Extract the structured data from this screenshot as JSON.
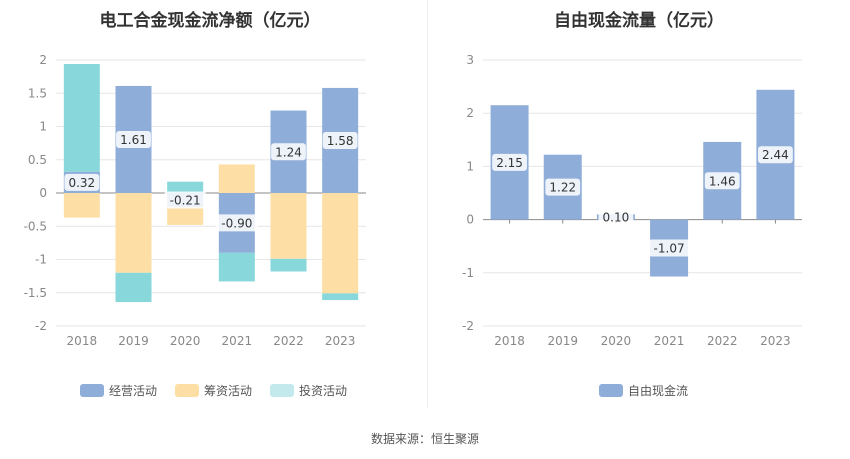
{
  "chart_data": [
    {
      "type": "bar",
      "stacked": true,
      "title": "电工合金现金流净额（亿元）",
      "categories": [
        "2018",
        "2019",
        "2020",
        "2021",
        "2022",
        "2023"
      ],
      "ylim": [
        -2,
        2
      ],
      "yticks": [
        2,
        1.5,
        1,
        0.5,
        0,
        -0.5,
        -1,
        -1.5,
        -2
      ],
      "ytick_labels": [
        "2",
        "1.5",
        "1",
        "0.5",
        "0",
        "-0.5",
        "-1",
        "-1.5",
        "-2"
      ],
      "series": [
        {
          "name": "经营活动",
          "color": "#8fadd9",
          "values": [
            0.32,
            1.61,
            -0.21,
            -0.9,
            1.24,
            1.58
          ]
        },
        {
          "name": "筹资活动",
          "color": "#fddea5",
          "values": [
            -0.37,
            -1.2,
            -0.27,
            0.43,
            -0.99,
            -1.51
          ]
        },
        {
          "name": "投资活动",
          "color": "#87d7db",
          "values": [
            1.62,
            -0.44,
            0.17,
            -0.43,
            -0.19,
            -0.1
          ]
        }
      ],
      "data_labels": [
        "0.32",
        "1.61",
        "-0.21",
        "-0.90",
        "1.24",
        "1.58"
      ],
      "legend": "bottom",
      "grid": true
    },
    {
      "type": "bar",
      "title": "自由现金流量（亿元）",
      "categories": [
        "2018",
        "2019",
        "2020",
        "2021",
        "2022",
        "2023"
      ],
      "ylim": [
        -2,
        3
      ],
      "yticks": [
        3,
        2,
        1,
        0,
        -1,
        -2
      ],
      "ytick_labels": [
        "3",
        "2",
        "1",
        "0",
        "-1",
        "-2"
      ],
      "series": [
        {
          "name": "自由现金流",
          "color": "#8fadd9",
          "values": [
            2.15,
            1.22,
            0.1,
            -1.07,
            1.46,
            2.44
          ]
        }
      ],
      "data_labels": [
        "2.15",
        "1.22",
        "0.10",
        "-1.07",
        "1.46",
        "2.44"
      ],
      "legend": "bottom",
      "grid": true
    }
  ],
  "legend_left": [
    {
      "label": "经营活动",
      "color": "#8fadd9"
    },
    {
      "label": "筹资活动",
      "color": "#fddea5"
    },
    {
      "label": "投资活动",
      "color": "#c3e9ec"
    }
  ],
  "legend_right": [
    {
      "label": "自由现金流",
      "color": "#8fadd9"
    }
  ],
  "source": "数据来源：恒生聚源"
}
